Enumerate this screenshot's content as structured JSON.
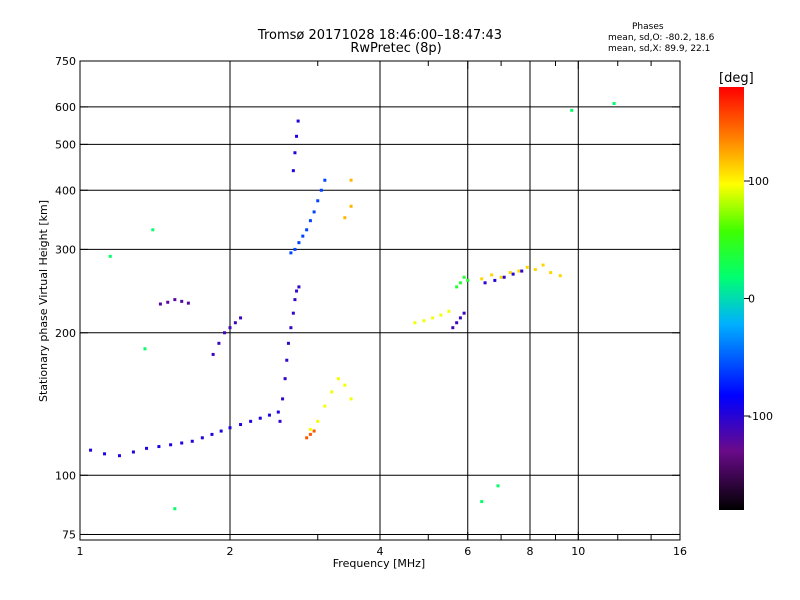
{
  "header": {
    "title_line1": "Tromsø 20171028 18:46:00–18:47:43",
    "title_line2": "RwPretec (8p)",
    "stats_title": "Phases",
    "stats_line1": "mean, sd,O: -80.2, 18.6",
    "stats_line2": "mean, sd,X:  89.9, 22.1"
  },
  "colorbar": {
    "label": "[deg]",
    "min": -180,
    "max": 180,
    "ticks": [
      {
        "value": 100,
        "label": "100"
      },
      {
        "value": 0,
        "label": "0"
      },
      {
        "value": -100,
        "label": "-100"
      }
    ]
  },
  "chart_data": {
    "type": "scatter",
    "xlabel": "Frequency [MHz]",
    "ylabel": "Stationary phase Virtual Height [km]",
    "xscale": "log",
    "yscale": "log",
    "xlim": [
      1,
      16
    ],
    "ylim": [
      73,
      750
    ],
    "x_ticks": [
      1,
      2,
      4,
      6,
      8,
      10,
      16
    ],
    "x_tick_labels": [
      "1",
      "2",
      "4",
      "6",
      "8",
      "10",
      "16"
    ],
    "x_minor_ticks": [
      3,
      5,
      7,
      9,
      12,
      14
    ],
    "y_ticks": [
      75,
      100,
      200,
      300,
      400,
      500,
      600,
      750
    ],
    "y_tick_labels": [
      "75",
      "100",
      "200",
      "300",
      "400",
      "500",
      "600",
      "750"
    ],
    "grid": true,
    "series": [
      {
        "x": [
          1.05,
          1.12,
          1.2,
          1.28,
          1.36,
          1.44,
          1.52,
          1.6,
          1.68,
          1.76,
          1.84,
          1.92,
          2.0,
          2.1,
          2.2,
          2.3,
          2.4,
          2.5
        ],
        "y": [
          113,
          111,
          110,
          112,
          114,
          115,
          116,
          117,
          118,
          120,
          122,
          124,
          126,
          128,
          130,
          132,
          134,
          136
        ],
        "phase_deg": -95
      },
      {
        "x": [
          2.52,
          2.55,
          2.58,
          2.6,
          2.62,
          2.65,
          2.68,
          2.7,
          2.72,
          2.75
        ],
        "y": [
          130,
          145,
          160,
          175,
          190,
          205,
          220,
          235,
          245,
          250
        ],
        "phase_deg": -105
      },
      {
        "x": [
          2.65,
          2.7,
          2.75,
          2.8,
          2.85,
          2.9,
          2.95,
          3.0,
          3.05,
          3.1
        ],
        "y": [
          295,
          300,
          310,
          320,
          330,
          345,
          360,
          380,
          400,
          420
        ],
        "phase_deg": -60
      },
      {
        "x": [
          2.68,
          2.7,
          2.72,
          2.74
        ],
        "y": [
          440,
          480,
          520,
          560
        ],
        "phase_deg": -95
      },
      {
        "x": [
          1.85,
          1.9,
          1.95,
          2.0,
          2.05,
          2.1
        ],
        "y": [
          180,
          190,
          200,
          205,
          210,
          215
        ],
        "phase_deg": -110
      },
      {
        "x": [
          1.45,
          1.5,
          1.55,
          1.6,
          1.65
        ],
        "y": [
          230,
          232,
          235,
          233,
          231
        ],
        "phase_deg": -120
      },
      {
        "x": [
          2.9,
          3.0,
          3.1,
          3.2,
          3.3,
          3.4,
          3.5
        ],
        "y": [
          125,
          130,
          140,
          150,
          160,
          155,
          145
        ],
        "phase_deg": 95
      },
      {
        "x": [
          2.85,
          2.9,
          2.95
        ],
        "y": [
          120,
          122,
          124
        ],
        "phase_deg": 150
      },
      {
        "x": [
          4.7,
          4.9,
          5.1,
          5.3,
          5.5
        ],
        "y": [
          210,
          212,
          215,
          218,
          222
        ],
        "phase_deg": 95
      },
      {
        "x": [
          5.6,
          5.7,
          5.8,
          5.9
        ],
        "y": [
          205,
          210,
          215,
          220
        ],
        "phase_deg": -110
      },
      {
        "x": [
          5.7,
          5.8,
          5.9,
          6.0
        ],
        "y": [
          250,
          255,
          262,
          258
        ],
        "phase_deg": 40
      },
      {
        "x": [
          6.4,
          6.7,
          7.0,
          7.3,
          7.6,
          7.9,
          8.2,
          8.5,
          8.8,
          9.2
        ],
        "y": [
          260,
          265,
          262,
          268,
          270,
          275,
          272,
          278,
          268,
          264
        ],
        "phase_deg": 110
      },
      {
        "x": [
          6.5,
          6.8,
          7.1,
          7.4,
          7.7
        ],
        "y": [
          255,
          258,
          262,
          266,
          270
        ],
        "phase_deg": -100
      },
      {
        "x": [
          3.4,
          3.5,
          3.5
        ],
        "y": [
          350,
          370,
          420
        ],
        "phase_deg": 120
      },
      {
        "x": [
          1.15,
          1.35,
          1.4,
          1.55,
          6.4,
          6.9,
          9.7,
          11.8
        ],
        "y": [
          290,
          185,
          330,
          85,
          88,
          95,
          590,
          610
        ],
        "phase_deg": 20
      }
    ]
  }
}
